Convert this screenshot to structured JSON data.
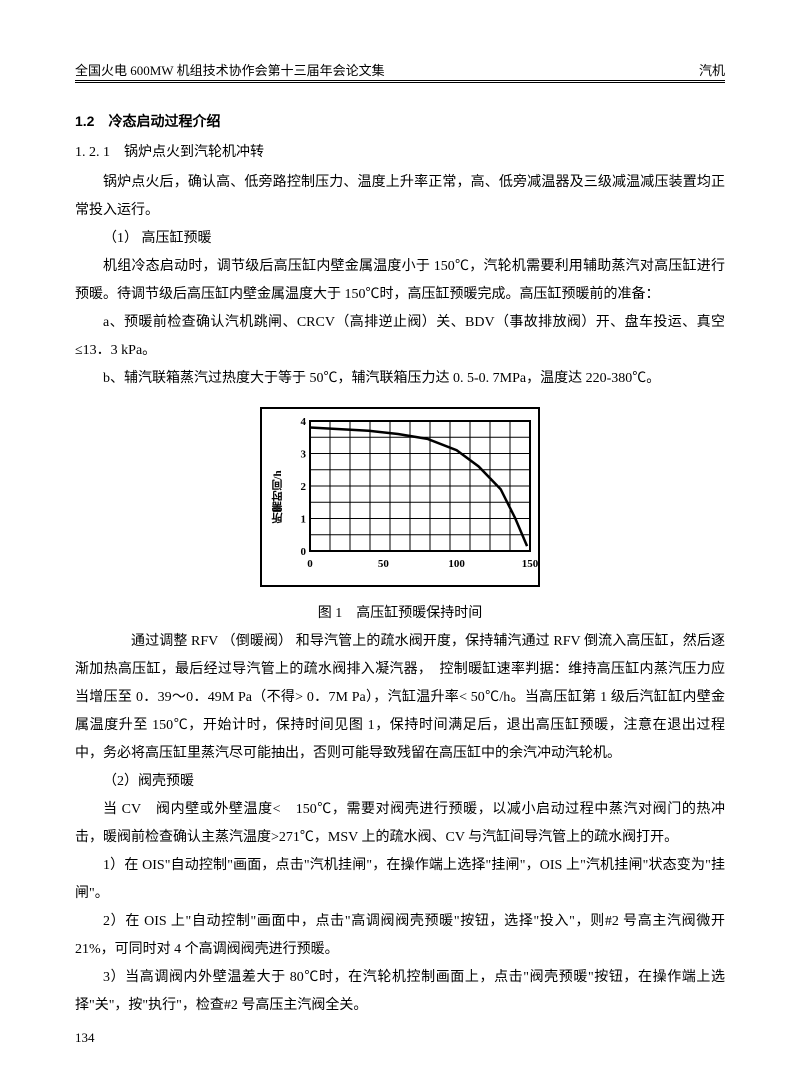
{
  "header": {
    "left": "全国火电 600MW 机组技术协作会第十三届年会论文集",
    "right": "汽机"
  },
  "section": {
    "number_title": "1.2　冷态启动过程介绍"
  },
  "subsection": {
    "number_title": "1. 2. 1　锅炉点火到汽轮机冲转"
  },
  "para1": "锅炉点火后，确认高、低旁路控制压力、温度上升率正常，高、低旁减温器及三级减温减压装置均正常投入运行。",
  "item1_title": "（1） 高压缸预暖",
  "para2": "机组冷态启动时，调节级后高压缸内壁金属温度小于 150℃，汽轮机需要利用辅助蒸汽对高压缸进行预暖。待调节级后高压缸内壁金属温度大于 150℃时，高压缸预暖完成。高压缸预暖前的准备：",
  "para3": "a、预暖前检查确认汽机跳闸、CRCV（高排逆止阀）关、BDV（事故排放阀）开、盘车投运、真空≤13．3 kPa。",
  "para4": "b、辅汽联箱蒸汽过热度大于等于 50℃，辅汽联箱压力达 0. 5-0. 7MPa，温度达 220-380℃。",
  "chart": {
    "type": "line",
    "ylabel": "所需时间/h",
    "x_values": [
      0,
      50,
      100,
      150
    ],
    "y_ticks": [
      0,
      1,
      2,
      3,
      4
    ],
    "x_range": [
      0,
      150
    ],
    "y_range": [
      0,
      4
    ],
    "x_grid_cells": 11,
    "y_grid_cells": 8,
    "curve_points": [
      {
        "x": 0,
        "y": 3.8
      },
      {
        "x": 20,
        "y": 3.75
      },
      {
        "x": 40,
        "y": 3.7
      },
      {
        "x": 60,
        "y": 3.6
      },
      {
        "x": 80,
        "y": 3.45
      },
      {
        "x": 100,
        "y": 3.1
      },
      {
        "x": 115,
        "y": 2.6
      },
      {
        "x": 130,
        "y": 1.9
      },
      {
        "x": 140,
        "y": 1.0
      },
      {
        "x": 148,
        "y": 0.15
      }
    ],
    "grid_color": "#000000",
    "line_color": "#000000",
    "background_color": "#ffffff",
    "line_width": 2.5,
    "grid_width": 1,
    "tick_fontsize": 11
  },
  "chart_caption": "图 1　高压缸预暖保持时间",
  "para5": "通过调整 RFV （倒暖阀） 和导汽管上的疏水阀开度，保持辅汽通过 RFV 倒流入高压缸，然后逐渐加热高压缸，最后经过导汽管上的疏水阀排入凝汽器，　控制暖缸速率判据：维持高压缸内蒸汽压力应当增压至 0．39～0．49M Pa（不得> 0．7M Pa），汽缸温升率< 50℃/h。当高压缸第 1 级后汽缸缸内壁金属温度升至 150℃，开始计时，保持时间见图 1，保持时间满足后，退出高压缸预暖，注意在退出过程中，务必将高压缸里蒸汽尽可能抽出，否则可能导致残留在高压缸中的余汽冲动汽轮机。",
  "item2_title": "（2）阀壳预暖",
  "para6": "当 CV　阀内壁或外壁温度<　150℃，需要对阀壳进行预暖，以减小启动过程中蒸汽对阀门的热冲击，暖阀前检查确认主蒸汽温度>271℃，MSV 上的疏水阀、CV 与汽缸间导汽管上的疏水阀打开。",
  "para7": "1）在 OIS\"自动控制\"画面，点击\"汽机挂闸\"，在操作端上选择\"挂闸\"，OIS 上\"汽机挂闸\"状态变为\"挂闸\"。",
  "para8": "2）在 OIS 上\"自动控制\"画面中，点击\"高调阀阀壳预暖\"按钮，选择\"投入\"，则#2 号高主汽阀微开 21%，可同时对 4 个高调阀阀壳进行预暖。",
  "para9": "3）当高调阀内外壁温差大于 80℃时，在汽轮机控制画面上，点击\"阀壳预暖\"按钮，在操作端上选择\"关\"，按\"执行\"，检查#2 号高压主汽阀全关。",
  "page_number": "134"
}
